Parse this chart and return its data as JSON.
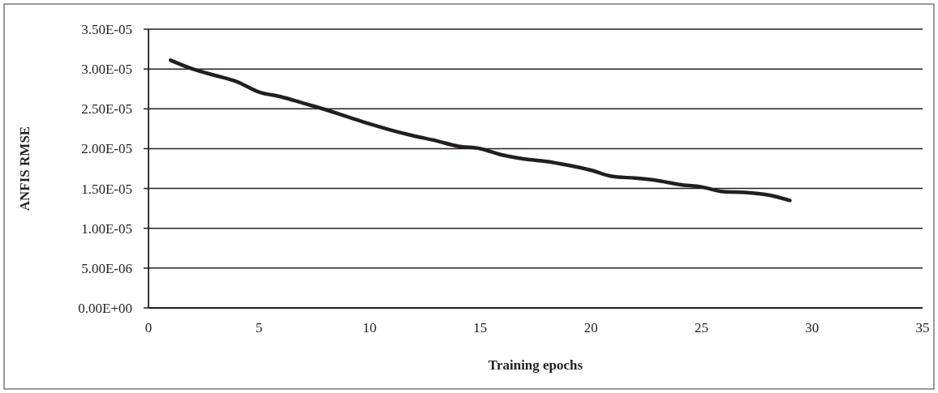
{
  "chart_data": {
    "type": "line",
    "xlabel": "Training epochs",
    "ylabel": "ANFIS RMSE",
    "x": [
      1,
      2,
      3,
      4,
      5,
      6,
      7,
      8,
      9,
      10,
      11,
      12,
      13,
      14,
      15,
      16,
      17,
      18,
      19,
      20,
      21,
      22,
      23,
      24,
      25,
      26,
      27,
      28,
      29
    ],
    "series": [
      {
        "color": "#231f20",
        "values": [
          3.11e-05,
          3e-05,
          2.92e-05,
          2.84e-05,
          2.71e-05,
          2.65e-05,
          2.57e-05,
          2.49e-05,
          2.4e-05,
          2.31e-05,
          2.23e-05,
          2.16e-05,
          2.1e-05,
          2.03e-05,
          2e-05,
          1.92e-05,
          1.87e-05,
          1.84e-05,
          1.79e-05,
          1.73e-05,
          1.65e-05,
          1.63e-05,
          1.6e-05,
          1.55e-05,
          1.52e-05,
          1.46e-05,
          1.45e-05,
          1.42e-05,
          1.35e-05
        ]
      }
    ],
    "xlim": [
      0,
      35
    ],
    "xticks": [
      0,
      5,
      10,
      15,
      20,
      25,
      30,
      35
    ],
    "ylim": [
      0,
      3.5e-05
    ],
    "yticks": [
      {
        "value": 0,
        "label": "0.00E+00"
      },
      {
        "value": 5e-06,
        "label": "5.00E-06"
      },
      {
        "value": 1e-05,
        "label": "1.00E-05"
      },
      {
        "value": 1.5e-05,
        "label": "1.50E-05"
      },
      {
        "value": 2e-05,
        "label": "2.00E-05"
      },
      {
        "value": 2.5e-05,
        "label": "2.50E-05"
      },
      {
        "value": 3e-05,
        "label": "3.00E-05"
      },
      {
        "value": 3.5e-05,
        "label": "3.50E-05"
      }
    ],
    "grid": "y",
    "line_style": "solid"
  }
}
